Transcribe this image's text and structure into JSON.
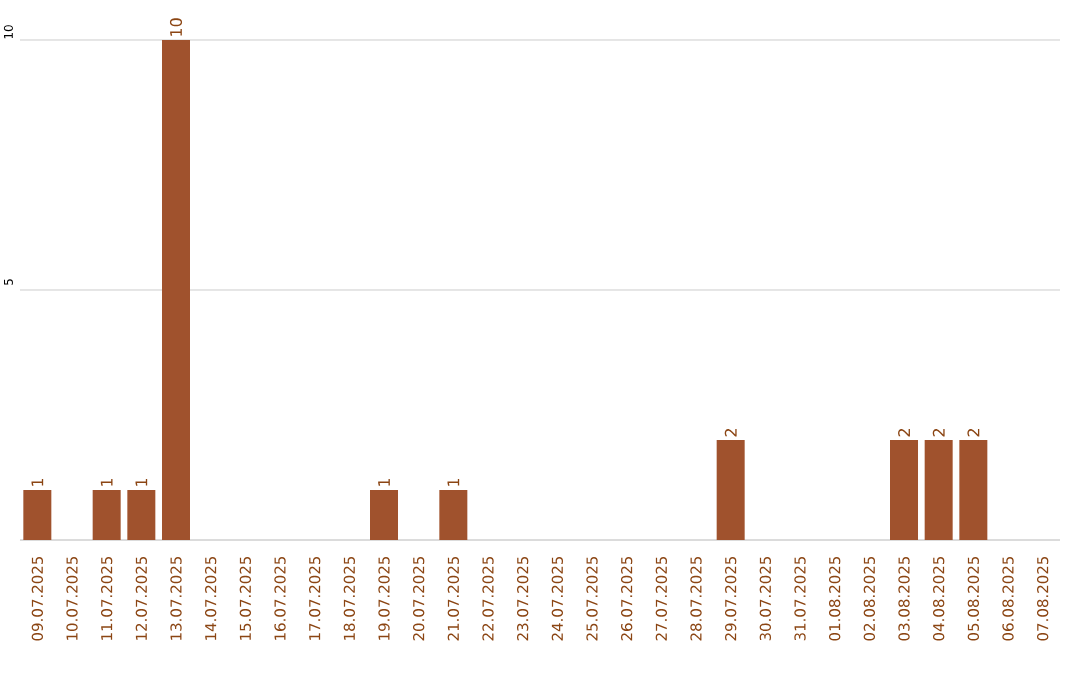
{
  "chart_data": {
    "type": "bar",
    "categories": [
      "09.07.2025",
      "10.07.2025",
      "11.07.2025",
      "12.07.2025",
      "13.07.2025",
      "14.07.2025",
      "15.07.2025",
      "16.07.2025",
      "17.07.2025",
      "18.07.2025",
      "19.07.2025",
      "20.07.2025",
      "21.07.2025",
      "22.07.2025",
      "23.07.2025",
      "24.07.2025",
      "25.07.2025",
      "26.07.2025",
      "27.07.2025",
      "28.07.2025",
      "29.07.2025",
      "30.07.2025",
      "31.07.2025",
      "01.08.2025",
      "02.08.2025",
      "03.08.2025",
      "04.08.2025",
      "05.08.2025",
      "06.08.2025",
      "07.08.2025"
    ],
    "values": [
      1,
      0,
      1,
      1,
      10,
      0,
      0,
      0,
      0,
      0,
      1,
      0,
      1,
      0,
      0,
      0,
      0,
      0,
      0,
      0,
      2,
      0,
      0,
      0,
      0,
      2,
      2,
      2,
      0,
      0
    ],
    "value_labels": [
      "1",
      null,
      "1",
      "1",
      "10",
      null,
      null,
      null,
      null,
      null,
      "1",
      null,
      "1",
      null,
      null,
      null,
      null,
      null,
      null,
      null,
      "2",
      null,
      null,
      null,
      null,
      "2",
      "2",
      "2",
      null,
      null
    ],
    "color": "#a0522d",
    "ylim": [
      0,
      10
    ],
    "yticks": [
      5,
      10
    ],
    "grid": "y"
  }
}
